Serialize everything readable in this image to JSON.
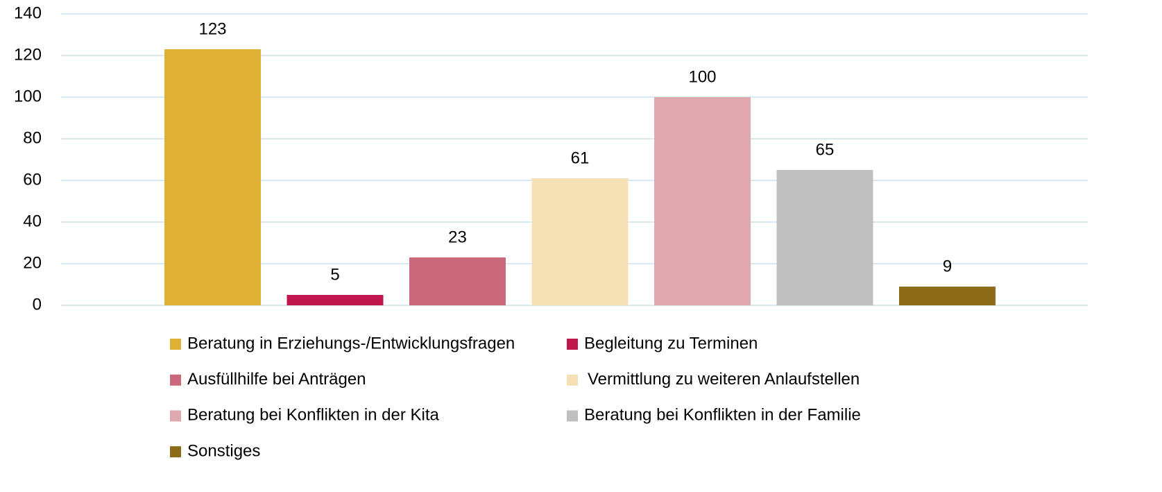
{
  "chart_data": {
    "type": "bar",
    "categories": [
      null
    ],
    "series": [
      {
        "name": "Beratung in Erziehungs-/Entwicklungsfragen",
        "color": "#deb135",
        "values": [
          123
        ]
      },
      {
        "name": "Begleitung zu Terminen",
        "color": "#c0174d",
        "values": [
          5
        ]
      },
      {
        "name": "Ausfüllhilfe bei Anträgen",
        "color": "#c9697b",
        "values": [
          23
        ]
      },
      {
        "name": "Vermittlung zu weiteren Anlaufstellen",
        "color": "#f5dfb5",
        "values": [
          61
        ]
      },
      {
        "name": "Beratung bei Konflikten in der Kita",
        "color": "#e0a9b0",
        "values": [
          100
        ]
      },
      {
        "name": "Beratung bei Konflikten in der Familie",
        "color": "#bfbfbf",
        "values": [
          65
        ]
      },
      {
        "name": "Sonstiges",
        "color": "#8c6b19",
        "values": [
          9
        ]
      }
    ],
    "ylim": [
      0,
      140
    ],
    "yticks": [
      0,
      20,
      40,
      60,
      80,
      100,
      120,
      140
    ],
    "grid": true,
    "legend": "bottom"
  }
}
